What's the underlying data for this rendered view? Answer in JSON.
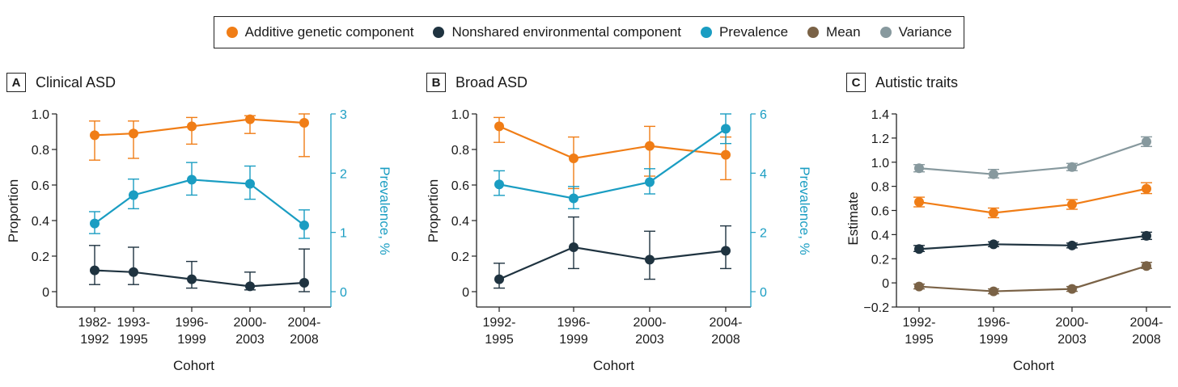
{
  "legend": [
    {
      "label": "Additive genetic component",
      "color": "#f07d16"
    },
    {
      "label": "Nonshared environmental component",
      "color": "#1f3340"
    },
    {
      "label": "Prevalence",
      "color": "#1a9dc2"
    },
    {
      "label": "Mean",
      "color": "#7a6246"
    },
    {
      "label": "Variance",
      "color": "#87999e"
    }
  ],
  "chart_data": [
    {
      "panel": "A",
      "title": "Clinical ASD",
      "type": "line",
      "xlabel": "Cohort",
      "ylabel": "Proportion",
      "y2label": "Prevalence, %",
      "categories": [
        [
          "1982-",
          "1992"
        ],
        [
          "1993-",
          "1995"
        ],
        [
          "1996-",
          "1999"
        ],
        [
          "2000-",
          "2003"
        ],
        [
          "2004-",
          "2008"
        ]
      ],
      "ylim": [
        0,
        1.0
      ],
      "yticks": [
        "0",
        "0.2",
        "0.4",
        "0.6",
        "0.8",
        "1.0"
      ],
      "y2lim": [
        0,
        3
      ],
      "y2ticks": [
        "0",
        "1",
        "2",
        "3"
      ],
      "series": [
        {
          "name": "Additive genetic component",
          "axis": "left",
          "color": "#f07d16",
          "values": [
            0.88,
            0.89,
            0.93,
            0.97,
            0.95
          ],
          "lower": [
            0.74,
            0.75,
            0.83,
            0.89,
            0.76
          ],
          "upper": [
            0.96,
            0.96,
            0.98,
            0.99,
            1.0
          ]
        },
        {
          "name": "Nonshared environmental component",
          "axis": "left",
          "color": "#1f3340",
          "values": [
            0.12,
            0.11,
            0.07,
            0.03,
            0.05
          ],
          "lower": [
            0.04,
            0.04,
            0.02,
            0.01,
            0.0
          ],
          "upper": [
            0.26,
            0.25,
            0.17,
            0.11,
            0.24
          ]
        },
        {
          "name": "Prevalence",
          "axis": "right",
          "color": "#1a9dc2",
          "values": [
            1.15,
            1.63,
            1.89,
            1.82,
            1.12
          ],
          "lower": [
            0.98,
            1.4,
            1.63,
            1.56,
            0.9
          ],
          "upper": [
            1.35,
            1.9,
            2.18,
            2.12,
            1.38
          ]
        }
      ]
    },
    {
      "panel": "B",
      "title": "Broad ASD",
      "type": "line",
      "xlabel": "Cohort",
      "ylabel": "Proportion",
      "y2label": "Prevalence, %",
      "categories": [
        [
          "1992-",
          "1995"
        ],
        [
          "1996-",
          "1999"
        ],
        [
          "2000-",
          "2003"
        ],
        [
          "2004-",
          "2008"
        ]
      ],
      "ylim": [
        0,
        1.0
      ],
      "yticks": [
        "0",
        "0.2",
        "0.4",
        "0.6",
        "0.8",
        "1.0"
      ],
      "y2lim": [
        0,
        6
      ],
      "y2ticks": [
        "0",
        "2",
        "4",
        "6"
      ],
      "series": [
        {
          "name": "Additive genetic component",
          "axis": "left",
          "color": "#f07d16",
          "values": [
            0.93,
            0.75,
            0.82,
            0.77
          ],
          "lower": [
            0.84,
            0.58,
            0.65,
            0.63
          ],
          "upper": [
            0.98,
            0.87,
            0.93,
            0.87
          ]
        },
        {
          "name": "Nonshared environmental component",
          "axis": "left",
          "color": "#1f3340",
          "values": [
            0.07,
            0.25,
            0.18,
            0.23
          ],
          "lower": [
            0.02,
            0.13,
            0.07,
            0.13
          ],
          "upper": [
            0.16,
            0.42,
            0.34,
            0.37
          ]
        },
        {
          "name": "Prevalence",
          "axis": "right",
          "color": "#1a9dc2",
          "values": [
            3.62,
            3.15,
            3.7,
            5.5
          ],
          "lower": [
            3.25,
            2.8,
            3.3,
            5.0
          ],
          "upper": [
            4.08,
            3.55,
            4.15,
            6.0
          ]
        }
      ]
    },
    {
      "panel": "C",
      "title": "Autistic traits",
      "type": "line",
      "xlabel": "Cohort",
      "ylabel": "Estimate",
      "categories": [
        [
          "1992-",
          "1995"
        ],
        [
          "1996-",
          "1999"
        ],
        [
          "2000-",
          "2003"
        ],
        [
          "2004-",
          "2008"
        ]
      ],
      "ylim": [
        -0.2,
        1.4
      ],
      "yticks": [
        "−0.2",
        "0",
        "0.2",
        "0.4",
        "0.6",
        "0.8",
        "1.0",
        "1.2",
        "1.4"
      ],
      "series": [
        {
          "name": "Variance",
          "axis": "left",
          "color": "#87999e",
          "values": [
            0.95,
            0.9,
            0.96,
            1.17
          ],
          "lower": [
            0.92,
            0.87,
            0.93,
            1.13
          ],
          "upper": [
            0.98,
            0.94,
            0.99,
            1.21
          ]
        },
        {
          "name": "Additive genetic component",
          "axis": "left",
          "color": "#f07d16",
          "values": [
            0.67,
            0.58,
            0.65,
            0.78
          ],
          "lower": [
            0.63,
            0.54,
            0.61,
            0.74
          ],
          "upper": [
            0.71,
            0.62,
            0.69,
            0.83
          ]
        },
        {
          "name": "Nonshared environmental component",
          "axis": "left",
          "color": "#1f3340",
          "values": [
            0.28,
            0.32,
            0.31,
            0.39
          ],
          "lower": [
            0.26,
            0.3,
            0.29,
            0.36
          ],
          "upper": [
            0.31,
            0.34,
            0.33,
            0.42
          ]
        },
        {
          "name": "Mean",
          "axis": "left",
          "color": "#7a6246",
          "values": [
            -0.03,
            -0.07,
            -0.05,
            0.14
          ],
          "lower": [
            -0.05,
            -0.09,
            -0.07,
            0.12
          ],
          "upper": [
            -0.01,
            -0.05,
            -0.03,
            0.17
          ]
        }
      ]
    }
  ]
}
